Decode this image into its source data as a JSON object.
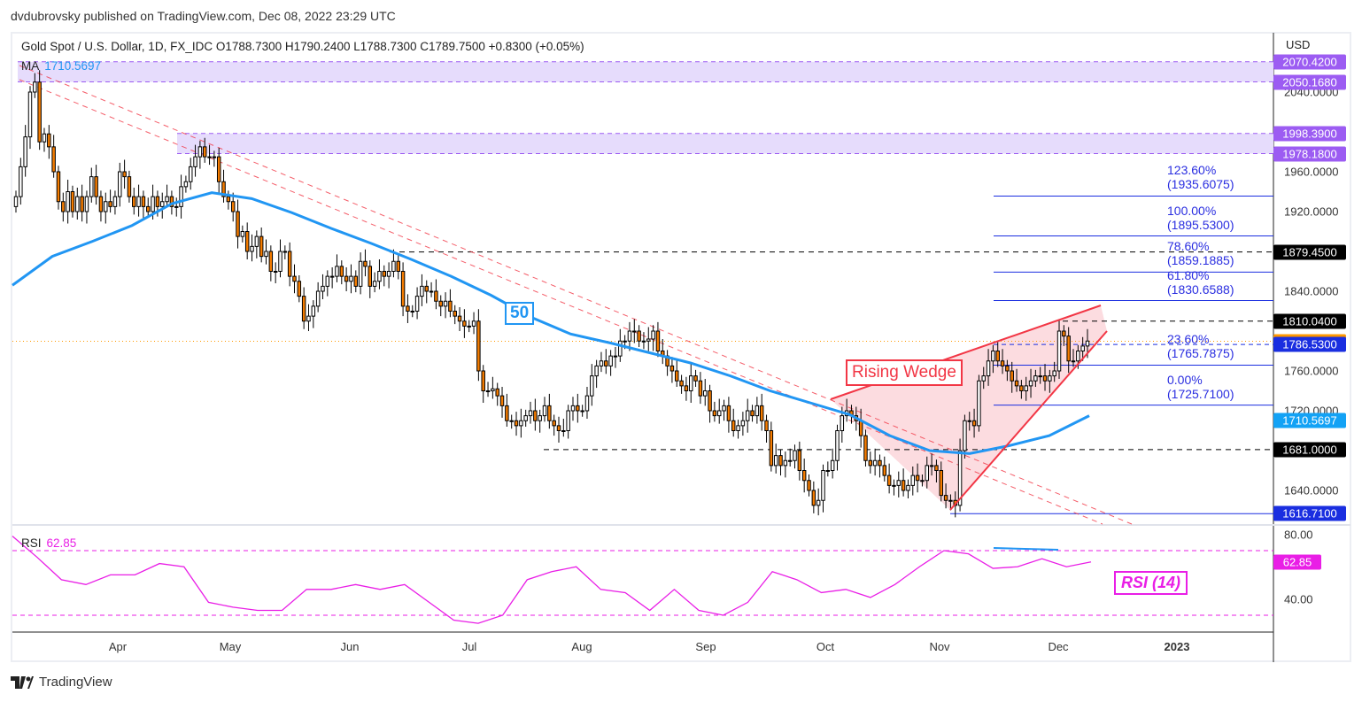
{
  "published": "dvdubrovsky published on TradingView.com, Dec 08, 2022 23:29 UTC",
  "legend": "Gold Spot / U.S. Dollar, 1D, FX_IDC  O1788.7300  H1790.2400  L1788.7300  C1789.7500  +0.8300 (+0.05%)",
  "ma_label": "MA",
  "ma_value": "1710.5697",
  "rsi_label": "RSI",
  "rsi_value": "62.85",
  "currency": "USD",
  "logo_text": "TradingView",
  "annotations": {
    "wedge": "Rising Wedge",
    "ma_period": "50",
    "rsi_period": "RSI (14)"
  },
  "colors": {
    "up": "#ffffff",
    "down": "#f57c00",
    "ma": "#2196f3",
    "rsi": "#e91ee6",
    "wedge": "#f23645",
    "zone": "#e6dcfc",
    "fib": "#1a2ee0"
  },
  "chart_data": {
    "type": "candlestick",
    "y_ticks": [
      "2040.0000",
      "1960.0000",
      "1920.0000",
      "1840.0000",
      "1760.0000",
      "1720.0000",
      "1640.0000"
    ],
    "x_ticks": [
      "Apr",
      "May",
      "Jun",
      "Jul",
      "Aug",
      "Sep",
      "Oct",
      "Nov",
      "Dec",
      "2023"
    ],
    "rsi_ticks": [
      "80.00",
      "40.00"
    ],
    "rsi_levels": [
      70,
      30
    ],
    "closes": [
      1935,
      1965,
      1995,
      2040,
      2050,
      1990,
      1998,
      1985,
      1960,
      1930,
      1920,
      1940,
      1920,
      1935,
      1920,
      1935,
      1955,
      1935,
      1920,
      1930,
      1925,
      1935,
      1960,
      1955,
      1935,
      1925,
      1935,
      1925,
      1920,
      1935,
      1925,
      1930,
      1935,
      1925,
      1925,
      1945,
      1950,
      1965,
      1975,
      1985,
      1975,
      1975,
      1975,
      1950,
      1935,
      1930,
      1920,
      1895,
      1900,
      1880,
      1885,
      1895,
      1875,
      1880,
      1860,
      1860,
      1880,
      1880,
      1855,
      1850,
      1835,
      1810,
      1815,
      1825,
      1840,
      1845,
      1855,
      1855,
      1865,
      1855,
      1850,
      1855,
      1845,
      1870,
      1865,
      1845,
      1850,
      1860,
      1855,
      1860,
      1870,
      1860,
      1825,
      1820,
      1820,
      1835,
      1845,
      1840,
      1840,
      1830,
      1825,
      1830,
      1820,
      1815,
      1810,
      1805,
      1805,
      1810,
      1760,
      1740,
      1740,
      1742,
      1735,
      1725,
      1710,
      1710,
      1705,
      1710,
      1715,
      1720,
      1710,
      1715,
      1725,
      1710,
      1705,
      1700,
      1700,
      1720,
      1725,
      1720,
      1720,
      1735,
      1755,
      1765,
      1770,
      1765,
      1775,
      1775,
      1790,
      1790,
      1800,
      1800,
      1790,
      1790,
      1792,
      1800,
      1780,
      1775,
      1765,
      1760,
      1750,
      1745,
      1740,
      1755,
      1750,
      1735,
      1740,
      1720,
      1715,
      1720,
      1725,
      1710,
      1700,
      1705,
      1710,
      1720,
      1715,
      1725,
      1710,
      1700,
      1665,
      1675,
      1665,
      1670,
      1670,
      1680,
      1660,
      1650,
      1640,
      1625,
      1630,
      1660,
      1660,
      1670,
      1700,
      1715,
      1720,
      1715,
      1710,
      1695,
      1670,
      1665,
      1670,
      1665,
      1655,
      1645,
      1645,
      1650,
      1640,
      1645,
      1655,
      1650,
      1650,
      1665,
      1665,
      1660,
      1635,
      1630,
      1630,
      1625,
      1680,
      1710,
      1710,
      1705,
      1750,
      1755,
      1770,
      1780,
      1770,
      1765,
      1760,
      1750,
      1745,
      1740,
      1745,
      1750,
      1755,
      1755,
      1750,
      1755,
      1760,
      1800,
      1795,
      1770,
      1770,
      1780,
      1785,
      1790
    ],
    "ma50": [
      1846,
      1875,
      1890,
      1906,
      1928,
      1939,
      1933,
      1919,
      1903,
      1888,
      1872,
      1855,
      1836,
      1814,
      1797,
      1788,
      1778,
      1768,
      1755,
      1740,
      1728,
      1716,
      1695,
      1680,
      1677,
      1685,
      1695,
      1715
    ],
    "rsi": [
      79,
      66,
      52,
      49,
      55,
      55,
      62,
      60,
      38,
      35,
      33,
      33,
      46,
      46,
      49,
      46,
      49,
      38,
      27,
      25,
      30,
      52,
      57,
      60,
      46,
      44,
      33,
      46,
      33,
      30,
      38,
      57,
      52,
      44,
      46,
      41,
      49,
      60,
      70,
      68,
      59,
      60,
      65,
      60,
      63
    ],
    "zones": [
      {
        "top": 2070.42,
        "bottom": 2050.168
      },
      {
        "top": 1998.39,
        "bottom": 1978.18
      }
    ],
    "levels": [
      {
        "price": "2070.4200",
        "color": "#9c5cf2"
      },
      {
        "price": "2050.1680",
        "color": "#9c5cf2"
      },
      {
        "price": "1998.3900",
        "color": "#9c5cf2"
      },
      {
        "price": "1978.1800",
        "color": "#9c5cf2"
      },
      {
        "price": "1879.4500",
        "color": "#000000"
      },
      {
        "price": "1810.0400",
        "color": "#000000"
      },
      {
        "price": "1789.7500",
        "color": "#ff9800"
      },
      {
        "price": "1786.5300",
        "color": "#1a2ee0"
      },
      {
        "price": "1710.5697",
        "color": "#13a2f5"
      },
      {
        "price": "1681.0000",
        "color": "#000000"
      },
      {
        "price": "1616.7100",
        "color": "#1a2ee0"
      }
    ],
    "fibs": [
      {
        "label": "123.60%(1935.6075)",
        "price": 1935.6075
      },
      {
        "label": "100.00%(1895.5300)",
        "price": 1895.53
      },
      {
        "label": "78.60%(1859.1885)",
        "price": 1859.1885
      },
      {
        "label": "61.80%(1830.6588)",
        "price": 1830.6588
      },
      {
        "label": "23.60%(1765.7875)",
        "price": 1765.7875
      },
      {
        "label": "0.00%(1725.7100)",
        "price": 1725.71
      }
    ],
    "rsi_badge": "62.85"
  }
}
